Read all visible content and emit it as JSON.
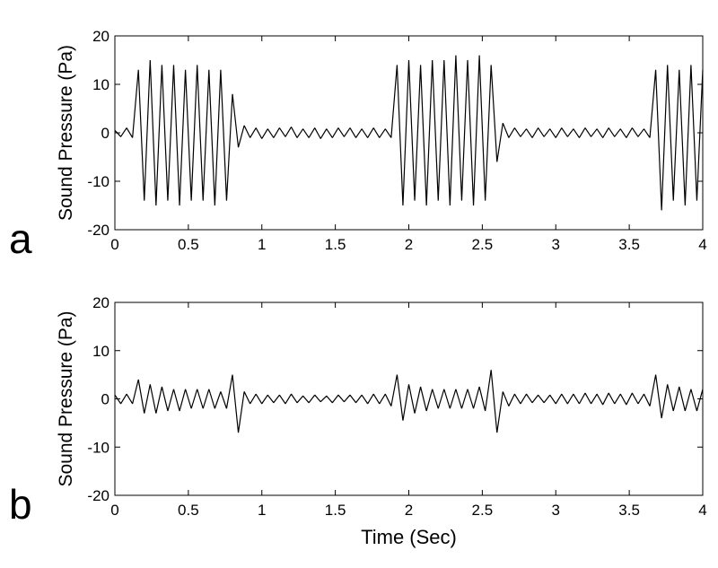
{
  "chart_data": [
    {
      "type": "line",
      "label": "a",
      "ylabel": "Sound Pressure (Pa)",
      "color": "#000000",
      "xlim": [
        0,
        4
      ],
      "ylim": [
        -20,
        20
      ],
      "xticks": [
        0,
        0.5,
        1,
        1.5,
        2,
        2.5,
        3,
        3.5,
        4
      ],
      "yticks": [
        -20,
        -10,
        0,
        10,
        20
      ],
      "x": [
        0,
        0.04,
        0.08,
        0.12,
        0.16,
        0.2,
        0.24,
        0.28,
        0.32,
        0.36,
        0.4,
        0.44,
        0.48,
        0.52,
        0.56,
        0.6,
        0.64,
        0.68,
        0.72,
        0.76,
        0.8,
        0.84,
        0.88,
        0.92,
        0.96,
        1,
        1.04,
        1.08,
        1.12,
        1.16,
        1.2,
        1.24,
        1.28,
        1.32,
        1.36,
        1.4,
        1.44,
        1.48,
        1.52,
        1.56,
        1.6,
        1.64,
        1.68,
        1.72,
        1.76,
        1.8,
        1.84,
        1.88,
        1.92,
        1.96,
        2,
        2.04,
        2.08,
        2.12,
        2.16,
        2.2,
        2.24,
        2.28,
        2.32,
        2.36,
        2.4,
        2.44,
        2.48,
        2.52,
        2.56,
        2.6,
        2.64,
        2.68,
        2.72,
        2.76,
        2.8,
        2.84,
        2.88,
        2.92,
        2.96,
        3,
        3.04,
        3.08,
        3.12,
        3.16,
        3.2,
        3.24,
        3.28,
        3.32,
        3.36,
        3.4,
        3.44,
        3.48,
        3.52,
        3.56,
        3.6,
        3.64,
        3.68,
        3.72,
        3.76,
        3.8,
        3.84,
        3.88,
        3.92,
        3.96,
        4
      ],
      "values": [
        0.5,
        -0.8,
        1,
        -1,
        13,
        -14,
        15,
        -15,
        14,
        -14,
        14,
        -15,
        13,
        -14,
        14,
        -14,
        13,
        -15,
        13,
        -14,
        8,
        -3,
        1.5,
        -1,
        1,
        -1.2,
        0.8,
        -1,
        1,
        -0.8,
        1.2,
        -1,
        0.8,
        -1,
        1,
        -1.2,
        0.8,
        -1,
        1,
        -0.8,
        1,
        -1,
        0.8,
        -1,
        1,
        -1,
        0.8,
        -1,
        14,
        -15,
        15,
        -14,
        14,
        -15,
        15,
        -14,
        15,
        -15,
        16,
        -14,
        15,
        -15,
        16,
        -14,
        14,
        -6,
        2,
        -1,
        1,
        -0.8,
        0.8,
        -1,
        1,
        -0.8,
        0.8,
        -1,
        1,
        -0.8,
        0.8,
        -1,
        1,
        -0.8,
        0.8,
        -1,
        1,
        -0.8,
        0.8,
        -1,
        1,
        -0.8,
        0.8,
        -1,
        13,
        -16,
        14,
        -14,
        13,
        -15,
        14,
        -14,
        13
      ]
    },
    {
      "type": "line",
      "label": "b",
      "ylabel": "Sound Pressure (Pa)",
      "xlabel": "Time (Sec)",
      "color": "#000000",
      "xlim": [
        0,
        4
      ],
      "ylim": [
        -20,
        20
      ],
      "xticks": [
        0,
        0.5,
        1,
        1.5,
        2,
        2.5,
        3,
        3.5,
        4
      ],
      "yticks": [
        -20,
        -10,
        0,
        10,
        20
      ],
      "x": [
        0,
        0.04,
        0.08,
        0.12,
        0.16,
        0.2,
        0.24,
        0.28,
        0.32,
        0.36,
        0.4,
        0.44,
        0.48,
        0.52,
        0.56,
        0.6,
        0.64,
        0.68,
        0.72,
        0.76,
        0.8,
        0.84,
        0.88,
        0.92,
        0.96,
        1,
        1.04,
        1.08,
        1.12,
        1.16,
        1.2,
        1.24,
        1.28,
        1.32,
        1.36,
        1.4,
        1.44,
        1.48,
        1.52,
        1.56,
        1.6,
        1.64,
        1.68,
        1.72,
        1.76,
        1.8,
        1.84,
        1.88,
        1.92,
        1.96,
        2,
        2.04,
        2.08,
        2.12,
        2.16,
        2.2,
        2.24,
        2.28,
        2.32,
        2.36,
        2.4,
        2.44,
        2.48,
        2.52,
        2.56,
        2.6,
        2.64,
        2.68,
        2.72,
        2.76,
        2.8,
        2.84,
        2.88,
        2.92,
        2.96,
        3,
        3.04,
        3.08,
        3.12,
        3.16,
        3.2,
        3.24,
        3.28,
        3.32,
        3.36,
        3.4,
        3.44,
        3.48,
        3.52,
        3.56,
        3.6,
        3.64,
        3.68,
        3.72,
        3.76,
        3.8,
        3.84,
        3.88,
        3.92,
        3.96,
        4
      ],
      "values": [
        0.8,
        -1,
        1,
        -1,
        4,
        -3,
        3,
        -3,
        2.5,
        -2.5,
        2,
        -2.5,
        2,
        -2,
        2,
        -2,
        2,
        -2,
        1.5,
        -2,
        5,
        -7,
        1.5,
        -1,
        1,
        -1,
        0.8,
        -0.8,
        0.8,
        -1,
        1,
        -0.8,
        0.6,
        -0.8,
        0.8,
        -0.6,
        0.6,
        -0.8,
        0.8,
        -0.6,
        0.8,
        -0.8,
        0.8,
        -1,
        1,
        -1,
        1,
        -1.5,
        5,
        -4.5,
        3,
        -3,
        2.5,
        -2.5,
        2,
        -2,
        2,
        -2,
        2,
        -2,
        2,
        -2,
        2.5,
        -2.5,
        6,
        -7,
        1.5,
        -1.5,
        1,
        -1,
        1,
        -0.8,
        0.8,
        -0.8,
        0.8,
        -1,
        1,
        -1,
        1,
        -1,
        1.2,
        -1,
        1,
        -1.2,
        1.2,
        -1,
        1,
        -1.2,
        1.2,
        -1,
        1,
        -1.5,
        5,
        -4,
        3,
        -2.5,
        2.5,
        -2.5,
        2,
        -2.5,
        2
      ]
    }
  ]
}
